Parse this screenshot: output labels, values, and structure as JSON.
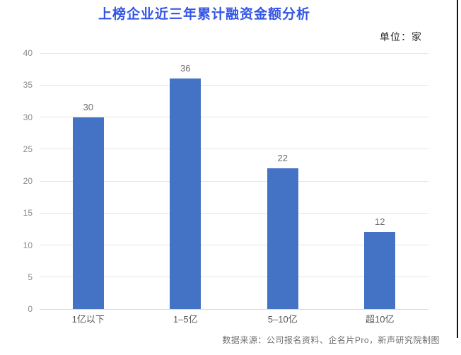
{
  "header": {
    "title": "上榜企业近三年累计融资金额分析",
    "unit_label": "单位：家"
  },
  "footer": {
    "source_note": "数据来源：公司报名资料、企名片Pro，新声研究院制图"
  },
  "colors": {
    "bar": "#4472c4",
    "title": "#3354e6",
    "gridline": "#e4e4e4",
    "axis_line": "#d9d9d9",
    "tick_label": "#8c8c8c",
    "value_label": "#6e6e6e",
    "category_label": "#555555",
    "source_text": "#707070",
    "edge_line": "#141414",
    "background": "#ffffff"
  },
  "chart_data": {
    "type": "bar",
    "title": "上榜企业近三年累计融资金额分析",
    "unit": "单位：家",
    "categories": [
      "1亿以下",
      "1–5亿",
      "5–10亿",
      "超10亿"
    ],
    "values": [
      30,
      36,
      22,
      12
    ],
    "xlabel": "",
    "ylabel": "",
    "ylim": [
      0,
      40
    ],
    "yticks": [
      0,
      5,
      10,
      15,
      20,
      25,
      30,
      35,
      40
    ],
    "grid": true,
    "legend_position": "none",
    "source": "数据来源：公司报名资料、企名片Pro，新声研究院制图"
  }
}
